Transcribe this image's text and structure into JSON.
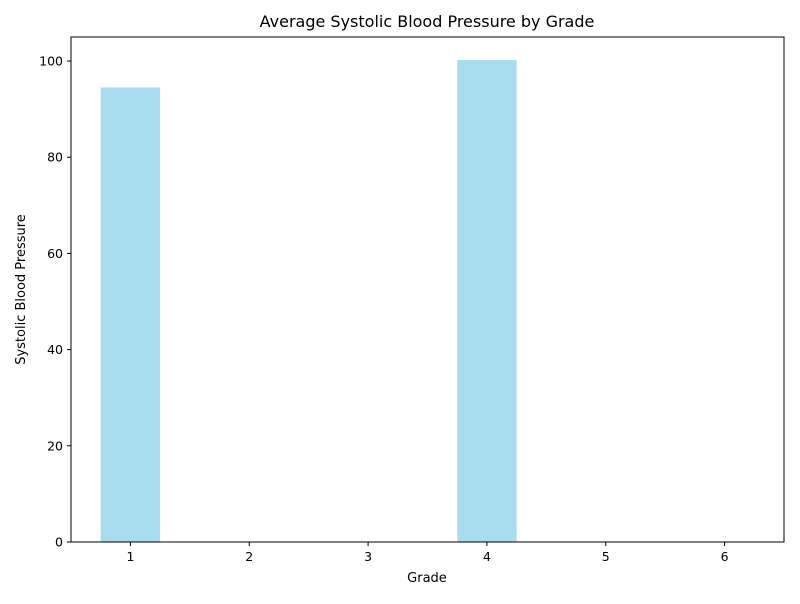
{
  "chart_data": {
    "type": "bar",
    "title": "Average Systolic Blood Pressure by Grade",
    "xlabel": "Grade",
    "ylabel": "Systolic Blood Pressure",
    "categories": [
      "1",
      "2",
      "3",
      "4",
      "5",
      "6"
    ],
    "x": [
      1,
      2,
      3,
      4,
      5,
      6
    ],
    "values": [
      94.5,
      0,
      0,
      100.2,
      0,
      0
    ],
    "ylim": [
      0,
      105
    ],
    "xlim": [
      0.5,
      6.5
    ],
    "yticks": [
      0,
      20,
      40,
      60,
      80,
      100
    ],
    "bar_color": "#a8dcee",
    "grid": false,
    "legend": "none"
  }
}
